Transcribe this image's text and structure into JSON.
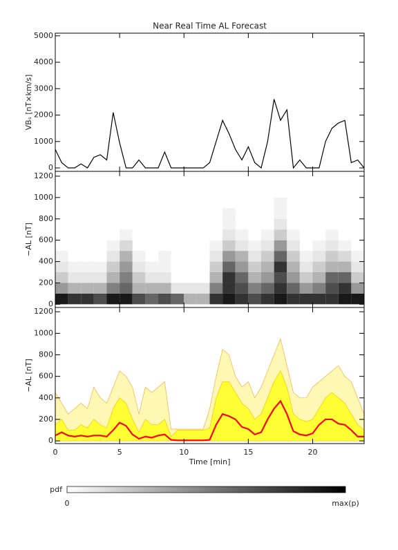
{
  "chart_data": [
    {
      "type": "line",
      "title": "Near Real Time AL Forecast",
      "ylabel": "VBₛ [nT×km/s]",
      "x": [
        0,
        0.5,
        1,
        1.5,
        2,
        2.5,
        3,
        3.5,
        4,
        4.5,
        5,
        5.5,
        6,
        6.5,
        7,
        7.5,
        8,
        8.5,
        9,
        9.5,
        10,
        10.5,
        11,
        11.5,
        12,
        12.5,
        13,
        13.5,
        14,
        14.5,
        15,
        15.5,
        16,
        16.5,
        17,
        17.5,
        18,
        18.5,
        19,
        19.5,
        20,
        20.5,
        21,
        21.5,
        22,
        22.5,
        23,
        23.5,
        24
      ],
      "series": [
        {
          "color": "#000000",
          "values": [
            700,
            200,
            0,
            0,
            150,
            0,
            400,
            500,
            300,
            2100,
            950,
            0,
            0,
            300,
            0,
            0,
            0,
            600,
            0,
            0,
            0,
            0,
            0,
            0,
            200,
            1000,
            1800,
            1300,
            700,
            300,
            800,
            200,
            0,
            1000,
            2600,
            1800,
            2200,
            0,
            300,
            0,
            0,
            0,
            1000,
            1500,
            1700,
            1800,
            200,
            300,
            0
          ]
        }
      ],
      "xlim": [
        0,
        24
      ],
      "xticks": [
        0,
        5,
        10,
        15,
        20
      ],
      "ylim": [
        -130,
        5100
      ],
      "yticks": [
        0,
        1000,
        2000,
        3000,
        4000,
        5000
      ],
      "show_xtick_labels": false
    },
    {
      "type": "heatmap",
      "ylabel": "−AL [nT]",
      "xbins": [
        0,
        1,
        2,
        3,
        4,
        5,
        6,
        7,
        8,
        9,
        10,
        11,
        12,
        13,
        14,
        15,
        16,
        17,
        18,
        19,
        20,
        21,
        22,
        23,
        24
      ],
      "ybins": [
        0,
        100,
        200,
        300,
        400,
        500,
        600,
        700,
        800,
        900,
        1000
      ],
      "z": [
        [
          0.9,
          0.8,
          0.8,
          0.7,
          0.9,
          0.9,
          0.7,
          0.6,
          0.7,
          0.6,
          0.3,
          0.3,
          0.8,
          0.9,
          0.8,
          0.7,
          0.8,
          0.9,
          0.8,
          0.8,
          0.8,
          0.8,
          0.9,
          0.9
        ],
        [
          0.4,
          0.3,
          0.3,
          0.3,
          0.5,
          0.6,
          0.3,
          0.3,
          0.3,
          0.1,
          0.1,
          0.1,
          0.5,
          0.8,
          0.7,
          0.5,
          0.6,
          0.8,
          0.6,
          0.4,
          0.5,
          0.7,
          0.8,
          0.4
        ],
        [
          0.2,
          0.1,
          0.1,
          0.1,
          0.3,
          0.5,
          0.2,
          0.1,
          0.1,
          0,
          0,
          0,
          0.3,
          0.8,
          0.6,
          0.3,
          0.4,
          0.7,
          0.4,
          0.2,
          0.3,
          0.6,
          0.6,
          0.2
        ],
        [
          0.1,
          0.05,
          0.05,
          0.05,
          0.2,
          0.4,
          0.1,
          0.05,
          0.05,
          0,
          0,
          0,
          0.2,
          0.6,
          0.4,
          0.2,
          0.3,
          0.8,
          0.3,
          0.1,
          0.2,
          0.3,
          0.3,
          0.1
        ],
        [
          0.05,
          0,
          0,
          0,
          0.1,
          0.3,
          0.05,
          0,
          0.05,
          0,
          0,
          0,
          0.1,
          0.4,
          0.3,
          0.1,
          0.2,
          0.6,
          0.2,
          0.05,
          0.1,
          0.2,
          0.15,
          0.05
        ],
        [
          0,
          0,
          0,
          0,
          0.05,
          0.15,
          0,
          0,
          0,
          0,
          0,
          0,
          0.05,
          0.2,
          0.1,
          0.05,
          0.1,
          0.4,
          0.1,
          0,
          0.05,
          0.1,
          0.05,
          0
        ],
        [
          0,
          0,
          0,
          0,
          0,
          0.05,
          0,
          0,
          0,
          0,
          0,
          0,
          0,
          0.1,
          0.05,
          0,
          0.05,
          0.2,
          0.05,
          0,
          0,
          0.05,
          0,
          0
        ],
        [
          0,
          0,
          0,
          0,
          0,
          0,
          0,
          0,
          0,
          0,
          0,
          0,
          0,
          0.05,
          0,
          0,
          0,
          0.1,
          0,
          0,
          0,
          0,
          0,
          0
        ],
        [
          0,
          0,
          0,
          0,
          0,
          0,
          0,
          0,
          0,
          0,
          0,
          0,
          0,
          0.05,
          0,
          0,
          0,
          0.05,
          0,
          0,
          0,
          0,
          0,
          0
        ],
        [
          0,
          0,
          0,
          0,
          0,
          0,
          0,
          0,
          0,
          0,
          0,
          0,
          0,
          0,
          0,
          0,
          0,
          0.05,
          0,
          0,
          0,
          0,
          0,
          0
        ]
      ],
      "colorbar": {
        "label": "pdf",
        "min_label": "0",
        "max_label": "max(p)"
      },
      "xlim": [
        0,
        24
      ],
      "xticks": [
        0,
        5,
        10,
        15,
        20
      ],
      "ylim": [
        -30,
        1245
      ],
      "yticks": [
        0,
        200,
        400,
        600,
        800,
        1000,
        1200
      ],
      "show_xtick_labels": false
    },
    {
      "type": "area",
      "ylabel": "−AL [nT]",
      "xlabel": "Time [min]",
      "x": [
        0,
        0.5,
        1,
        1.5,
        2,
        2.5,
        3,
        3.5,
        4,
        4.5,
        5,
        5.5,
        6,
        6.5,
        7,
        7.5,
        8,
        8.5,
        9,
        9.5,
        10,
        10.5,
        11,
        11.5,
        12,
        12.5,
        13,
        13.5,
        14,
        14.5,
        15,
        15.5,
        16,
        16.5,
        17,
        17.5,
        18,
        18.5,
        19,
        19.5,
        20,
        20.5,
        21,
        21.5,
        22,
        22.5,
        23,
        23.5,
        24
      ],
      "series": [
        {
          "style": "area",
          "color": "#fff7b3",
          "edge": "#f5b041",
          "values": [
            450,
            350,
            250,
            300,
            350,
            300,
            500,
            400,
            350,
            500,
            650,
            600,
            500,
            250,
            500,
            450,
            500,
            550,
            110,
            110,
            110,
            110,
            110,
            110,
            300,
            600,
            850,
            800,
            600,
            500,
            550,
            400,
            500,
            650,
            800,
            950,
            700,
            450,
            400,
            400,
            500,
            550,
            600,
            650,
            700,
            600,
            550,
            400,
            250
          ]
        },
        {
          "style": "area",
          "color": "#ffff33",
          "edge": "#f5c400",
          "values": [
            150,
            200,
            100,
            100,
            150,
            120,
            200,
            150,
            120,
            300,
            400,
            350,
            200,
            80,
            200,
            150,
            150,
            200,
            40,
            100,
            100,
            100,
            100,
            100,
            120,
            400,
            550,
            550,
            450,
            350,
            300,
            200,
            250,
            400,
            550,
            650,
            500,
            250,
            200,
            180,
            200,
            300,
            400,
            450,
            400,
            350,
            250,
            150,
            100
          ]
        },
        {
          "style": "line",
          "color": "#ff0000",
          "values": [
            50,
            80,
            50,
            40,
            50,
            40,
            50,
            50,
            40,
            100,
            170,
            140,
            60,
            20,
            40,
            30,
            50,
            60,
            10,
            5,
            5,
            5,
            5,
            5,
            10,
            150,
            250,
            230,
            200,
            130,
            110,
            60,
            80,
            200,
            300,
            370,
            250,
            90,
            60,
            50,
            70,
            150,
            200,
            200,
            160,
            150,
            100,
            40,
            40
          ]
        }
      ],
      "xlim": [
        0,
        24
      ],
      "xticks": [
        0,
        5,
        10,
        15,
        20
      ],
      "ylim": [
        -25,
        1240
      ],
      "yticks": [
        0,
        200,
        400,
        600,
        800,
        1000,
        1200
      ],
      "show_xtick_labels": true
    }
  ]
}
